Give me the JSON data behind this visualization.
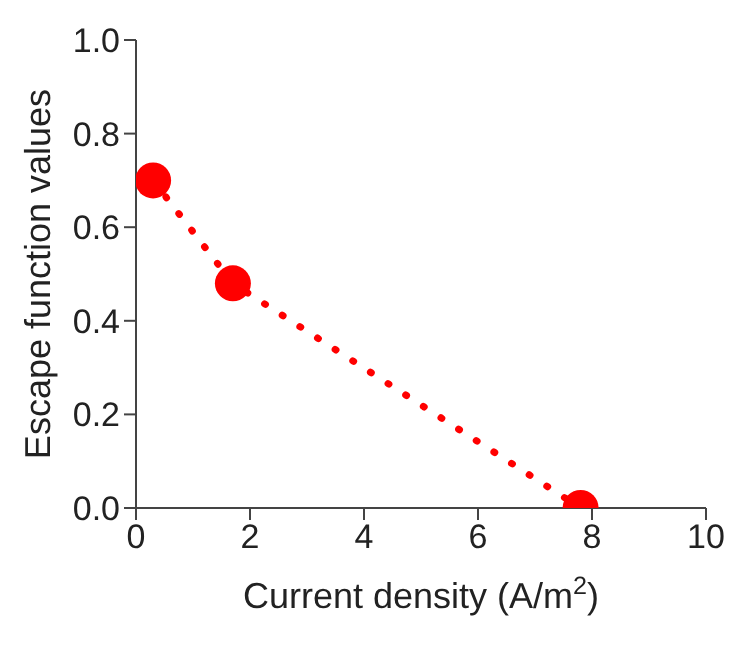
{
  "chart_data": {
    "type": "line",
    "xlabel": "Current density (A/m$^{2}$)",
    "ylabel": "Escape function values",
    "x": [
      0.3,
      1.7,
      7.8
    ],
    "series": [
      {
        "color": "#ff0000",
        "values": [
          0.7,
          0.48,
          0.0
        ]
      }
    ],
    "xlim": [
      0,
      10
    ],
    "xticks": [
      0,
      2,
      4,
      6,
      8,
      10
    ],
    "ylim": [
      0,
      1
    ],
    "yticks": [
      {
        "value": 0,
        "label": "0.0"
      },
      {
        "value": 0.2,
        "label": "0.2"
      },
      {
        "value": 0.4,
        "label": "0.4"
      },
      {
        "value": 0.6,
        "label": "0.6"
      },
      {
        "value": 0.8,
        "label": "0.8"
      },
      {
        "value": 1,
        "label": "1.0"
      }
    ],
    "marker": "circle",
    "line_style": "dotted"
  }
}
